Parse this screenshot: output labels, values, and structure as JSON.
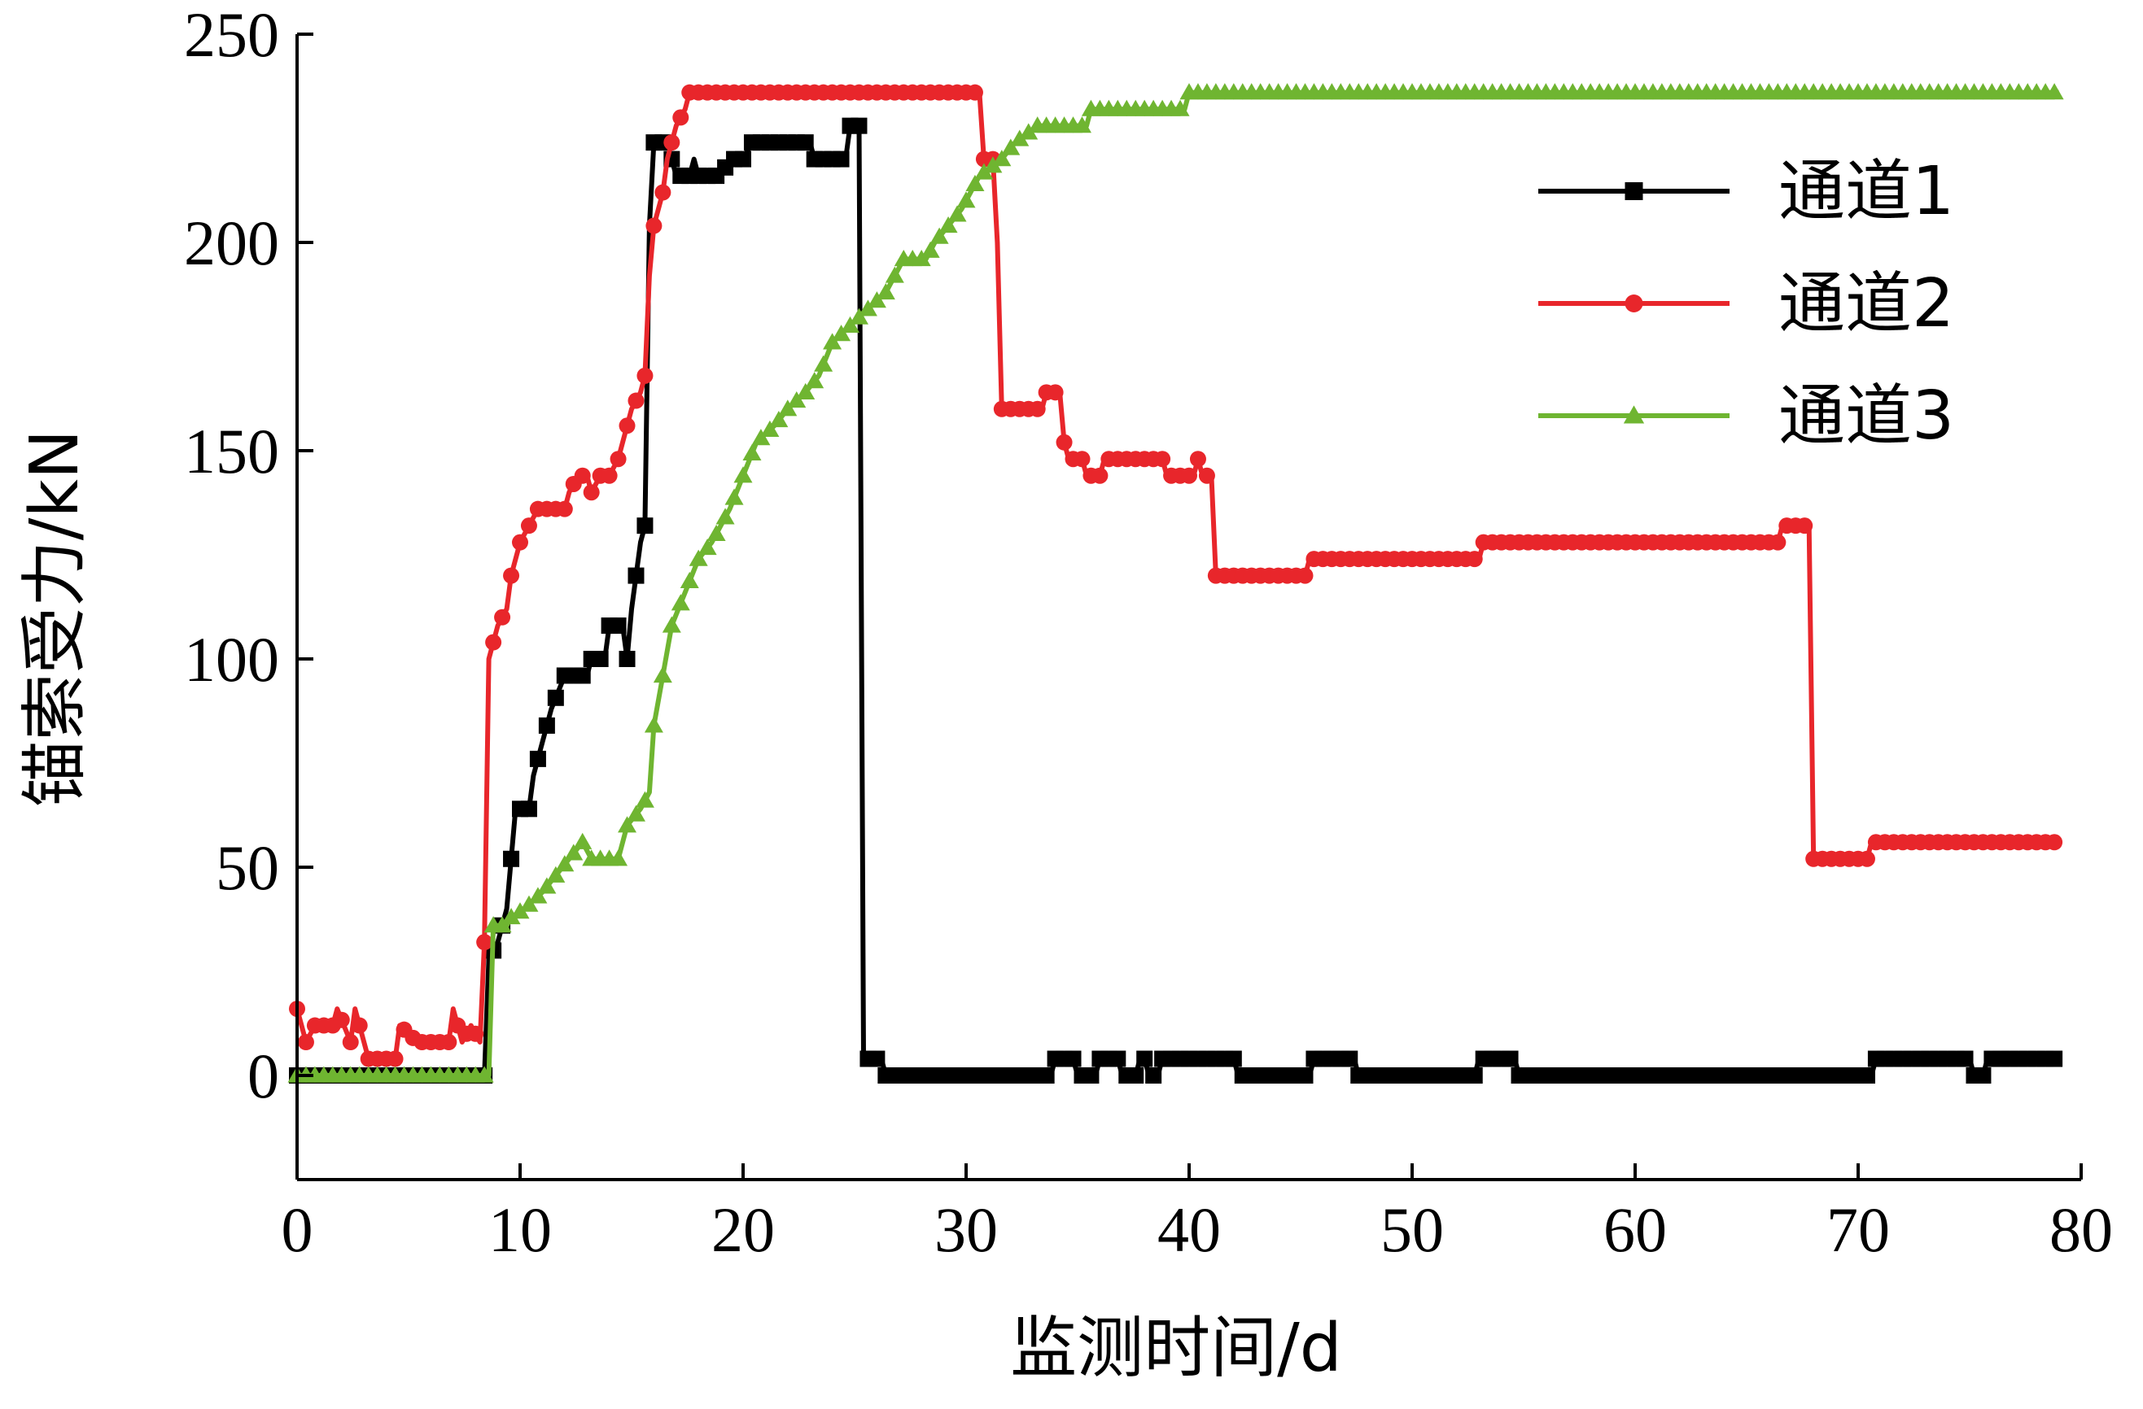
{
  "chart_data": {
    "type": "line",
    "title": "",
    "xlabel": "监测时间/d",
    "ylabel": "锚索受力/kN",
    "xlim": [
      0,
      80
    ],
    "ylim": [
      -25,
      250
    ],
    "xticks": [
      0,
      10,
      20,
      30,
      40,
      50,
      60,
      70,
      80
    ],
    "yticks": [
      0,
      50,
      100,
      150,
      200,
      250
    ],
    "grid": false,
    "legend": "top-right",
    "series": [
      {
        "name": "通道1",
        "color": "#000000",
        "marker": "square",
        "points": [
          [
            0,
            0
          ],
          [
            8.4,
            0
          ],
          [
            8.6,
            28
          ],
          [
            9,
            32
          ],
          [
            9.4,
            40
          ],
          [
            9.8,
            64
          ],
          [
            10.4,
            64
          ],
          [
            10.6,
            72
          ],
          [
            11,
            80
          ],
          [
            11.4,
            88
          ],
          [
            12,
            96
          ],
          [
            13,
            96
          ],
          [
            13.2,
            100
          ],
          [
            13.8,
            100
          ],
          [
            14,
            108
          ],
          [
            14.6,
            108
          ],
          [
            14.8,
            100
          ],
          [
            15,
            112
          ],
          [
            15.4,
            128
          ],
          [
            15.6,
            132
          ],
          [
            15.8,
            204
          ],
          [
            16,
            224
          ],
          [
            16.6,
            224
          ],
          [
            16.8,
            220
          ],
          [
            17,
            216
          ],
          [
            17.6,
            216
          ],
          [
            17.8,
            220
          ],
          [
            18,
            216
          ],
          [
            19,
            216
          ],
          [
            19.4,
            220
          ],
          [
            20,
            220
          ],
          [
            20.4,
            224
          ],
          [
            23,
            224
          ],
          [
            23.2,
            220
          ],
          [
            24.6,
            220
          ],
          [
            24.8,
            228
          ],
          [
            25.2,
            228
          ],
          [
            25.4,
            4
          ],
          [
            26.2,
            4
          ],
          [
            26.4,
            0
          ],
          [
            33.8,
            0
          ],
          [
            34,
            4
          ],
          [
            34.8,
            4
          ],
          [
            35,
            0
          ],
          [
            35.8,
            0
          ],
          [
            36,
            4
          ],
          [
            36.8,
            4
          ],
          [
            37,
            0
          ],
          [
            37.6,
            0
          ],
          [
            37.8,
            4
          ],
          [
            38,
            4
          ],
          [
            38.2,
            0
          ],
          [
            38.6,
            0
          ],
          [
            38.8,
            4
          ],
          [
            42,
            4
          ],
          [
            42.2,
            0
          ],
          [
            45.4,
            0
          ],
          [
            45.6,
            4
          ],
          [
            47.4,
            4
          ],
          [
            47.6,
            0
          ],
          [
            52.8,
            0
          ],
          [
            53,
            4
          ],
          [
            54.6,
            4
          ],
          [
            54.8,
            0
          ],
          [
            70.6,
            0
          ],
          [
            70.8,
            4
          ],
          [
            75,
            4
          ],
          [
            75.2,
            0
          ],
          [
            75.6,
            0
          ],
          [
            75.8,
            4
          ],
          [
            79,
            4
          ]
        ]
      },
      {
        "name": "通道2",
        "color": "#e8262b",
        "marker": "circle",
        "points": [
          [
            0,
            16
          ],
          [
            0.4,
            8
          ],
          [
            0.8,
            12
          ],
          [
            1.6,
            12
          ],
          [
            1.8,
            16
          ],
          [
            2.4,
            8
          ],
          [
            2.6,
            16
          ],
          [
            3,
            8
          ],
          [
            3.2,
            4
          ],
          [
            4.4,
            4
          ],
          [
            4.6,
            12
          ],
          [
            5.4,
            8
          ],
          [
            6,
            8
          ],
          [
            6.8,
            8
          ],
          [
            7,
            16
          ],
          [
            7.4,
            8
          ],
          [
            7.8,
            12
          ],
          [
            8.2,
            8
          ],
          [
            8.4,
            32
          ],
          [
            8.6,
            100
          ],
          [
            9,
            108
          ],
          [
            9.4,
            112
          ],
          [
            9.6,
            120
          ],
          [
            10,
            128
          ],
          [
            10.4,
            132
          ],
          [
            10.8,
            136
          ],
          [
            12,
            136
          ],
          [
            12.2,
            140
          ],
          [
            12.6,
            144
          ],
          [
            13,
            144
          ],
          [
            13.2,
            140
          ],
          [
            13.6,
            144
          ],
          [
            14,
            144
          ],
          [
            14.4,
            148
          ],
          [
            14.6,
            152
          ],
          [
            15,
            160
          ],
          [
            15.4,
            164
          ],
          [
            15.6,
            168
          ],
          [
            15.8,
            192
          ],
          [
            16,
            204
          ],
          [
            16.4,
            212
          ],
          [
            16.6,
            220
          ],
          [
            17,
            228
          ],
          [
            17.4,
            232
          ],
          [
            17.6,
            236
          ],
          [
            30.6,
            236
          ],
          [
            30.8,
            220
          ],
          [
            31.2,
            220
          ],
          [
            31.4,
            200
          ],
          [
            31.6,
            160
          ],
          [
            33.4,
            160
          ],
          [
            33.6,
            164
          ],
          [
            34.2,
            164
          ],
          [
            34.4,
            152
          ],
          [
            34.6,
            148
          ],
          [
            35.2,
            148
          ],
          [
            35.4,
            144
          ],
          [
            36,
            144
          ],
          [
            36.2,
            148
          ],
          [
            38.8,
            148
          ],
          [
            39,
            144
          ],
          [
            40.2,
            144
          ],
          [
            40.4,
            148
          ],
          [
            40.6,
            144
          ],
          [
            41,
            144
          ],
          [
            41.2,
            120
          ],
          [
            45.2,
            120
          ],
          [
            45.4,
            124
          ],
          [
            53,
            124
          ],
          [
            53.2,
            128
          ],
          [
            66.4,
            128
          ],
          [
            66.6,
            132
          ],
          [
            67.8,
            132
          ],
          [
            68,
            52
          ],
          [
            70.4,
            52
          ],
          [
            70.6,
            56
          ],
          [
            79,
            56
          ]
        ]
      },
      {
        "name": "通道3",
        "color": "#6fb531",
        "marker": "triangle",
        "points": [
          [
            0,
            0
          ],
          [
            8.6,
            0
          ],
          [
            8.8,
            36
          ],
          [
            9.4,
            36
          ],
          [
            9.6,
            38
          ],
          [
            10.2,
            40
          ],
          [
            11,
            44
          ],
          [
            11.6,
            48
          ],
          [
            12.2,
            52
          ],
          [
            12.8,
            56
          ],
          [
            13.2,
            52
          ],
          [
            14.4,
            52
          ],
          [
            14.8,
            60
          ],
          [
            15.4,
            64
          ],
          [
            15.8,
            68
          ],
          [
            16,
            84
          ],
          [
            16.4,
            96
          ],
          [
            16.8,
            108
          ],
          [
            17.4,
            116
          ],
          [
            18,
            124
          ],
          [
            18.6,
            128
          ],
          [
            19.4,
            136
          ],
          [
            20,
            144
          ],
          [
            20.6,
            152
          ],
          [
            21.4,
            156
          ],
          [
            22,
            160
          ],
          [
            22.8,
            164
          ],
          [
            23.4,
            168
          ],
          [
            24,
            176
          ],
          [
            24.8,
            180
          ],
          [
            25.6,
            184
          ],
          [
            26.4,
            188
          ],
          [
            27.2,
            196
          ],
          [
            28.2,
            196
          ],
          [
            28.6,
            200
          ],
          [
            29.2,
            204
          ],
          [
            29.8,
            208
          ],
          [
            30.6,
            216
          ],
          [
            31.6,
            220
          ],
          [
            32.2,
            224
          ],
          [
            33.2,
            228
          ],
          [
            34,
            228
          ],
          [
            35.4,
            228
          ],
          [
            35.6,
            232
          ],
          [
            39.8,
            232
          ],
          [
            40,
            236
          ],
          [
            79,
            236
          ]
        ]
      }
    ]
  }
}
